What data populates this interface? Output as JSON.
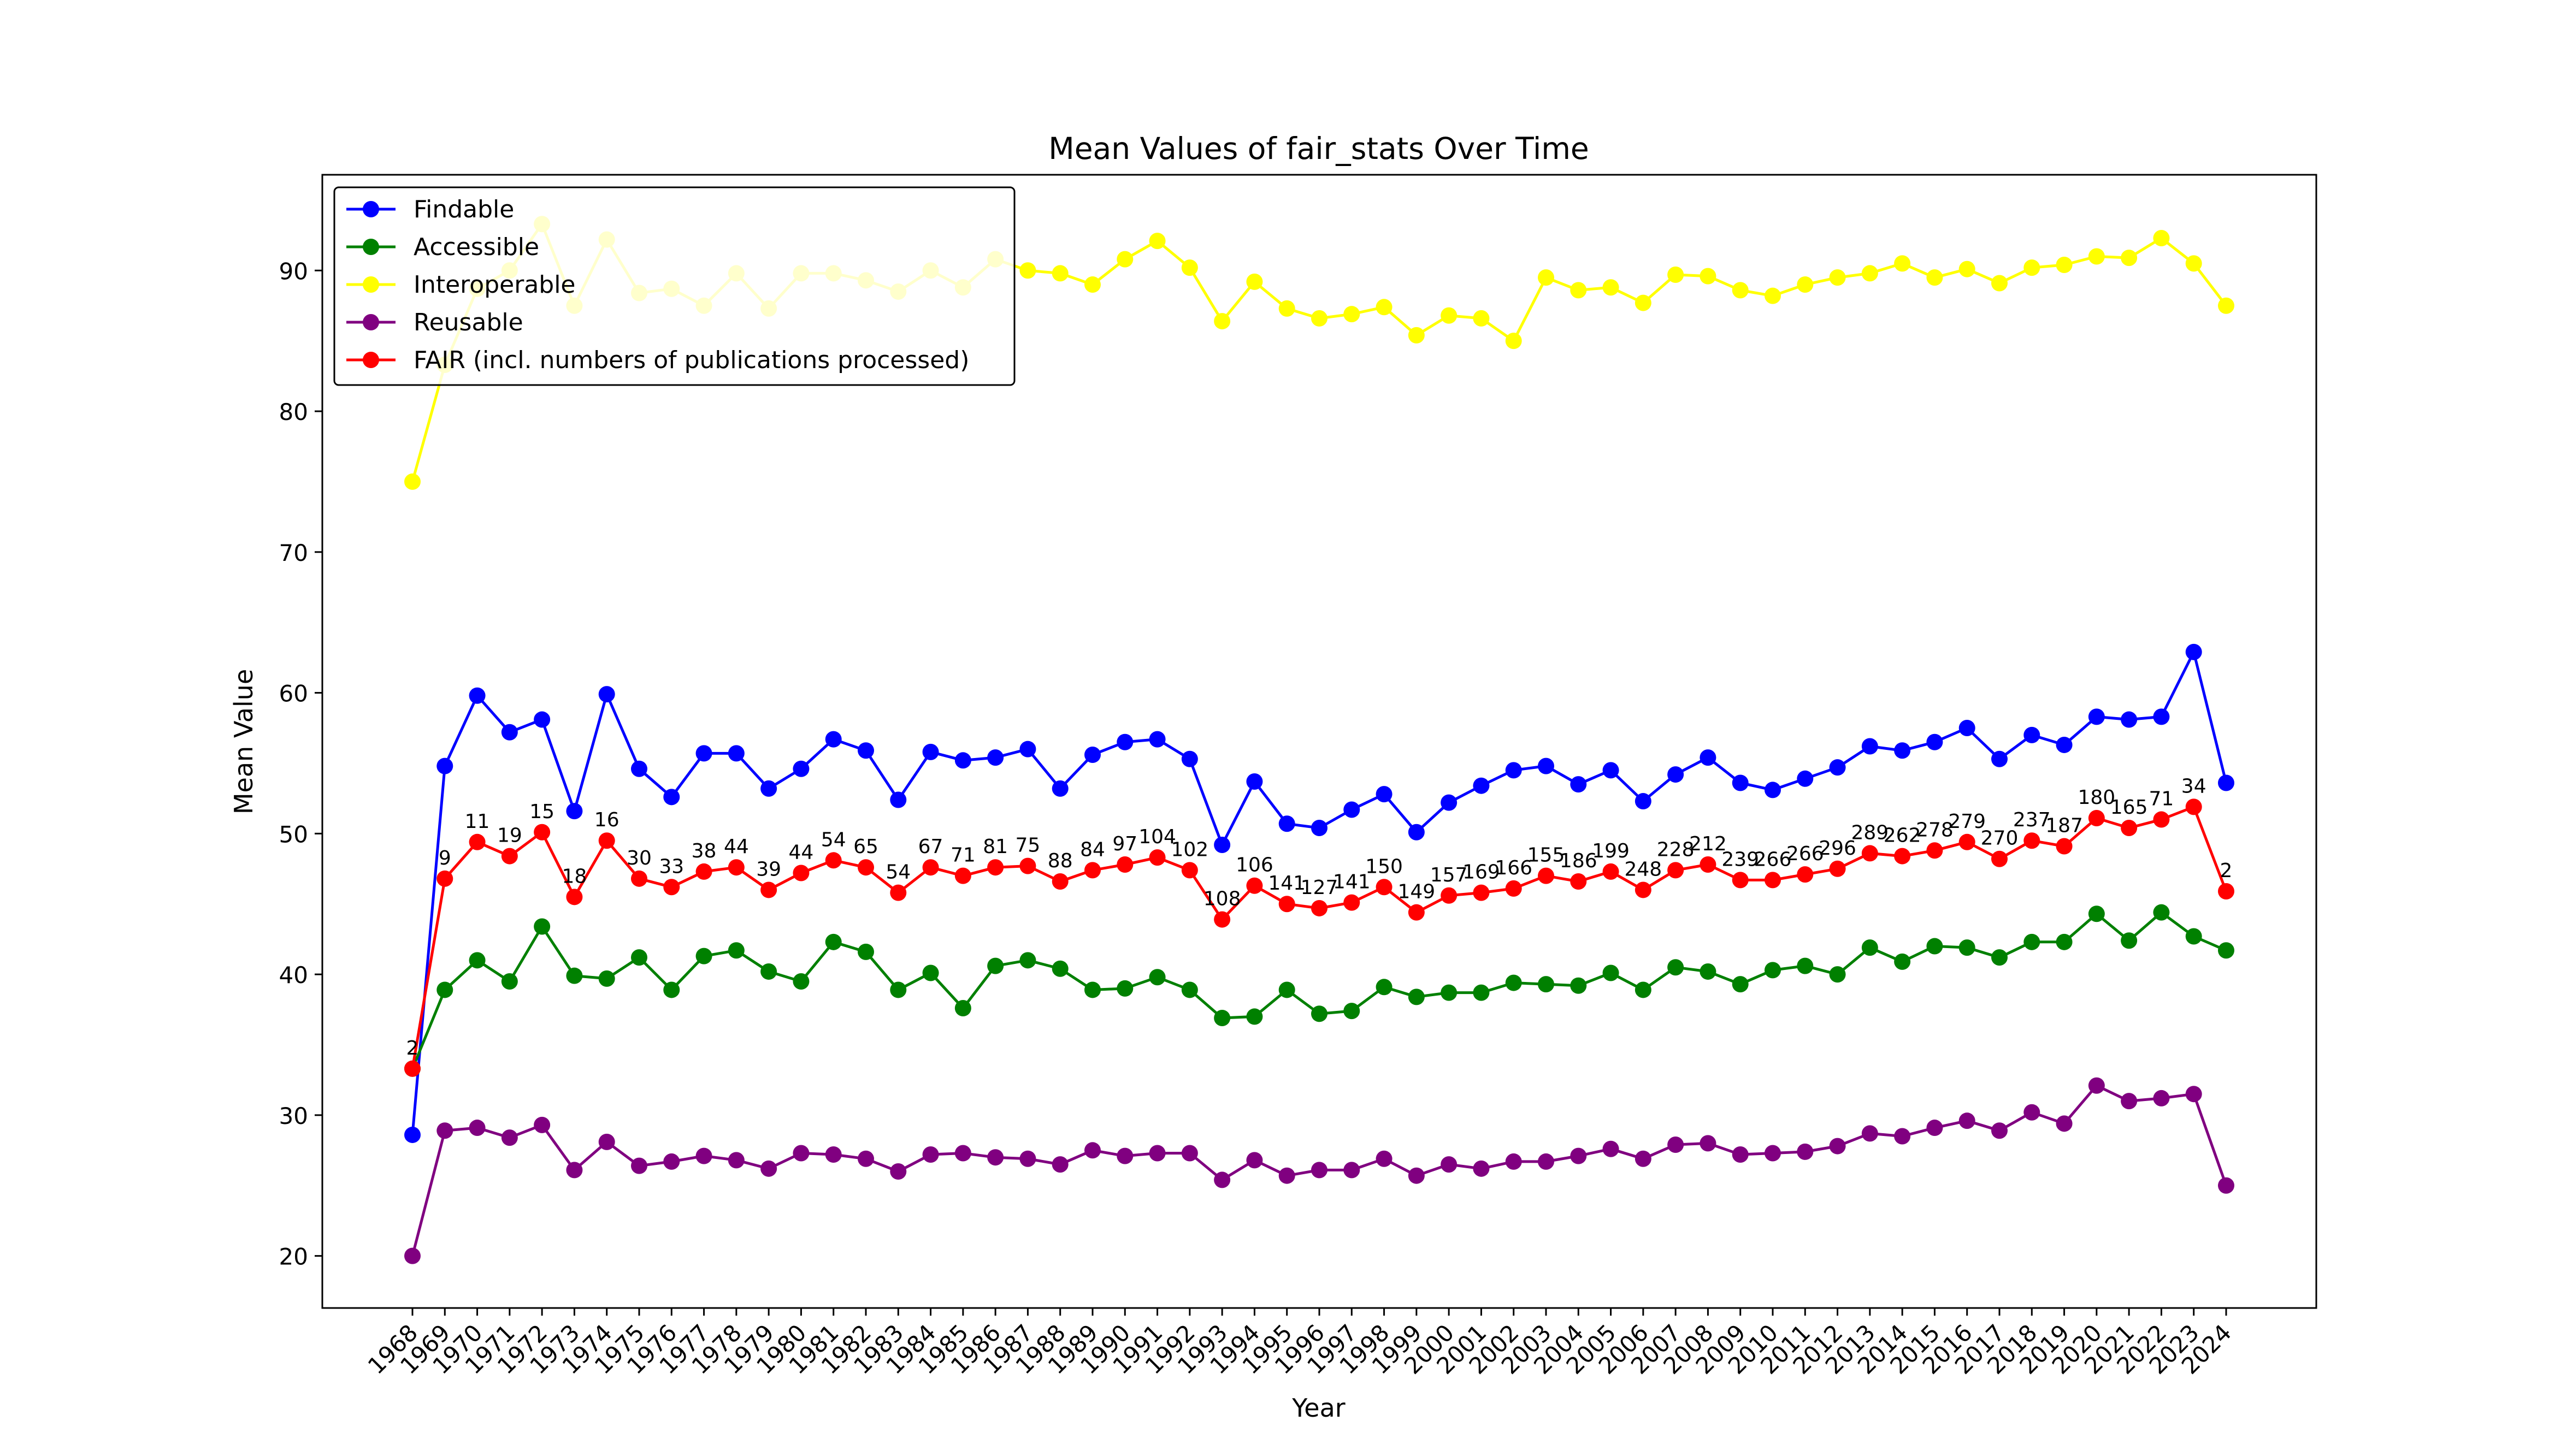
{
  "chart_data": {
    "type": "line",
    "title": "Mean Values of fair_stats Over Time",
    "xlabel": "Year",
    "ylabel": "Mean Value",
    "ylim": [
      16.3,
      96.8
    ],
    "yticks": [
      20,
      30,
      40,
      50,
      60,
      70,
      80,
      90
    ],
    "grid": false,
    "legend_position": "top-left",
    "x": [
      1968,
      1969,
      1970,
      1971,
      1972,
      1973,
      1974,
      1975,
      1976,
      1977,
      1978,
      1979,
      1980,
      1981,
      1982,
      1983,
      1984,
      1985,
      1986,
      1987,
      1988,
      1989,
      1990,
      1991,
      1992,
      1993,
      1994,
      1995,
      1996,
      1997,
      1998,
      1999,
      2000,
      2001,
      2002,
      2003,
      2004,
      2005,
      2006,
      2007,
      2008,
      2009,
      2010,
      2011,
      2012,
      2013,
      2014,
      2015,
      2016,
      2017,
      2018,
      2019,
      2020,
      2021,
      2022,
      2023,
      2024
    ],
    "series": [
      {
        "name": "Findable",
        "color": "#0000ff",
        "values": [
          28.6,
          54.8,
          59.8,
          57.2,
          58.1,
          51.6,
          59.9,
          54.6,
          52.6,
          55.7,
          55.7,
          53.2,
          54.6,
          56.7,
          55.9,
          52.4,
          55.8,
          55.2,
          55.4,
          56.0,
          53.2,
          55.6,
          56.5,
          56.7,
          55.3,
          49.2,
          53.7,
          50.7,
          50.4,
          51.7,
          52.8,
          50.1,
          52.2,
          53.4,
          54.5,
          54.8,
          53.5,
          54.5,
          52.3,
          54.2,
          55.4,
          53.6,
          53.1,
          53.9,
          54.7,
          56.2,
          55.9,
          56.5,
          57.5,
          55.3,
          57.0,
          56.3,
          58.3,
          58.1,
          58.3,
          62.9,
          53.6
        ]
      },
      {
        "name": "Accessible",
        "color": "#008000",
        "values": [
          33.3,
          38.9,
          41.0,
          39.5,
          43.4,
          39.9,
          39.7,
          41.2,
          38.9,
          41.3,
          41.7,
          40.2,
          39.5,
          42.3,
          41.6,
          38.9,
          40.1,
          37.6,
          40.6,
          41.0,
          40.4,
          38.9,
          39.0,
          39.8,
          38.9,
          36.9,
          37.0,
          38.9,
          37.2,
          37.4,
          39.1,
          38.4,
          38.7,
          38.7,
          39.4,
          39.3,
          39.2,
          40.1,
          38.9,
          40.5,
          40.2,
          39.3,
          40.3,
          40.6,
          40.0,
          41.9,
          40.9,
          42.0,
          41.9,
          41.2,
          42.3,
          42.3,
          44.3,
          42.4,
          44.4,
          42.7,
          41.7
        ]
      },
      {
        "name": "Interoperable",
        "color": "#ffff00",
        "values": [
          75.0,
          83.3,
          88.7,
          90.0,
          93.3,
          87.5,
          92.2,
          88.4,
          88.7,
          87.5,
          89.8,
          87.3,
          89.8,
          89.8,
          89.3,
          88.5,
          90.0,
          88.8,
          90.8,
          90.0,
          89.8,
          89.0,
          90.8,
          92.1,
          90.2,
          86.4,
          89.2,
          87.3,
          86.6,
          86.9,
          87.4,
          85.4,
          86.8,
          86.6,
          85.0,
          89.5,
          88.6,
          88.8,
          87.7,
          89.7,
          89.6,
          88.6,
          88.2,
          89.0,
          89.5,
          89.8,
          90.5,
          89.5,
          90.1,
          89.1,
          90.2,
          90.4,
          91.0,
          90.9,
          92.3,
          90.5,
          87.5
        ]
      },
      {
        "name": "Reusable",
        "color": "#800080",
        "values": [
          20.0,
          28.9,
          29.1,
          28.4,
          29.3,
          26.1,
          28.1,
          26.4,
          26.7,
          27.1,
          26.8,
          26.2,
          27.3,
          27.2,
          26.9,
          26.0,
          27.2,
          27.3,
          27.0,
          26.9,
          26.5,
          27.5,
          27.1,
          27.3,
          27.3,
          25.4,
          26.8,
          25.7,
          26.1,
          26.1,
          26.9,
          25.7,
          26.5,
          26.2,
          26.7,
          26.7,
          27.1,
          27.6,
          26.9,
          27.9,
          28.0,
          27.2,
          27.3,
          27.4,
          27.8,
          28.7,
          28.5,
          29.1,
          29.6,
          28.9,
          30.2,
          29.4,
          32.1,
          31.0,
          31.2,
          31.5,
          25.0
        ]
      },
      {
        "name": "FAIR (incl. numbers of publications processed)",
        "color": "#ff0000",
        "values": [
          33.3,
          46.8,
          49.4,
          48.4,
          50.1,
          45.5,
          49.5,
          46.8,
          46.2,
          47.3,
          47.6,
          46.0,
          47.2,
          48.1,
          47.6,
          45.8,
          47.6,
          47.0,
          47.6,
          47.7,
          46.6,
          47.4,
          47.8,
          48.3,
          47.4,
          43.9,
          46.3,
          45.0,
          44.7,
          45.1,
          46.2,
          44.4,
          45.6,
          45.8,
          46.1,
          47.0,
          46.6,
          47.3,
          46.0,
          47.4,
          47.8,
          46.7,
          46.7,
          47.1,
          47.5,
          48.6,
          48.4,
          48.8,
          49.4,
          48.2,
          49.5,
          49.1,
          51.1,
          50.4,
          51.0,
          51.9,
          45.9
        ],
        "point_labels": [
          "2",
          "9",
          "11",
          "19",
          "15",
          "18",
          "16",
          "30",
          "33",
          "38",
          "44",
          "39",
          "44",
          "54",
          "65",
          "54",
          "67",
          "71",
          "81",
          "75",
          "88",
          "84",
          "97",
          "104",
          "102",
          "108",
          "106",
          "141",
          "127",
          "141",
          "150",
          "149",
          "157",
          "169",
          "166",
          "155",
          "186",
          "199",
          "248",
          "228",
          "212",
          "239",
          "266",
          "266",
          "296",
          "289",
          "262",
          "278",
          "279",
          "270",
          "237",
          "187",
          "180",
          "165",
          "71",
          "34",
          "2"
        ]
      }
    ]
  }
}
